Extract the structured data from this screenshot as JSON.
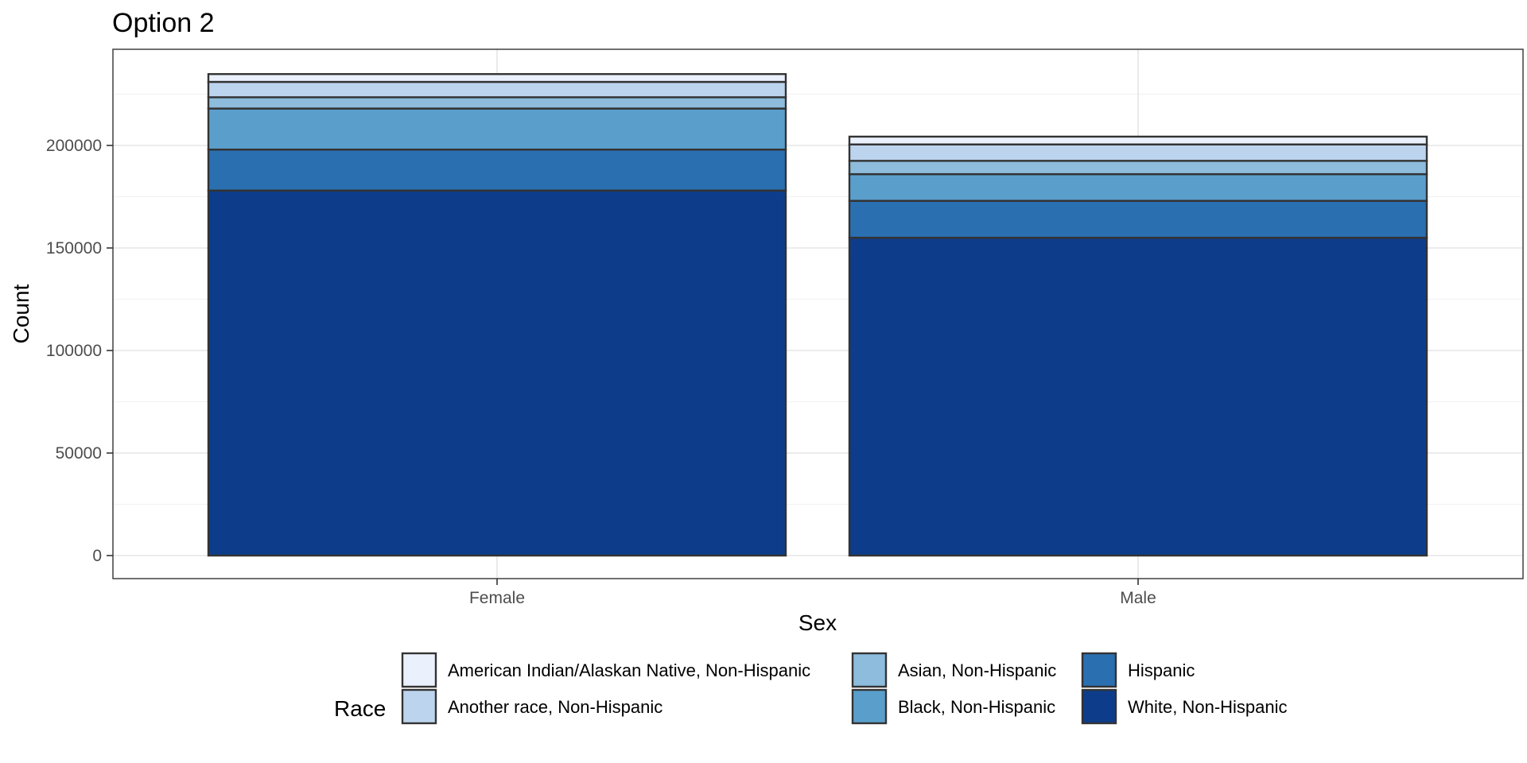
{
  "chart_data": {
    "type": "bar",
    "stacked": true,
    "title": "Option 2",
    "xlabel": "Sex",
    "ylabel": "Count",
    "categories": [
      "Female",
      "Male"
    ],
    "ylim": [
      0,
      240000
    ],
    "yticks": [
      0,
      50000,
      100000,
      150000,
      200000
    ],
    "grid": true,
    "legend_title": "Race",
    "legend_position": "bottom",
    "series": [
      {
        "name": "White, Non-Hispanic",
        "values": [
          178000,
          155000
        ],
        "color": "#0d3d8a"
      },
      {
        "name": "Hispanic",
        "values": [
          20000,
          18000
        ],
        "color": "#2a6fb0"
      },
      {
        "name": "Black, Non-Hispanic",
        "values": [
          20000,
          13000
        ],
        "color": "#5a9fcc"
      },
      {
        "name": "Asian, Non-Hispanic",
        "values": [
          5500,
          6500
        ],
        "color": "#8dbcdd"
      },
      {
        "name": "Another race, Non-Hispanic",
        "values": [
          7500,
          8000
        ],
        "color": "#bdd4ee"
      },
      {
        "name": "American Indian/Alaskan Native, Non-Hispanic",
        "values": [
          3800,
          3800
        ],
        "color": "#eaf0fc"
      }
    ],
    "legend_order": [
      "American Indian/Alaskan Native, Non-Hispanic",
      "Another race, Non-Hispanic",
      "Asian, Non-Hispanic",
      "Black, Non-Hispanic",
      "Hispanic",
      "White, Non-Hispanic"
    ]
  }
}
